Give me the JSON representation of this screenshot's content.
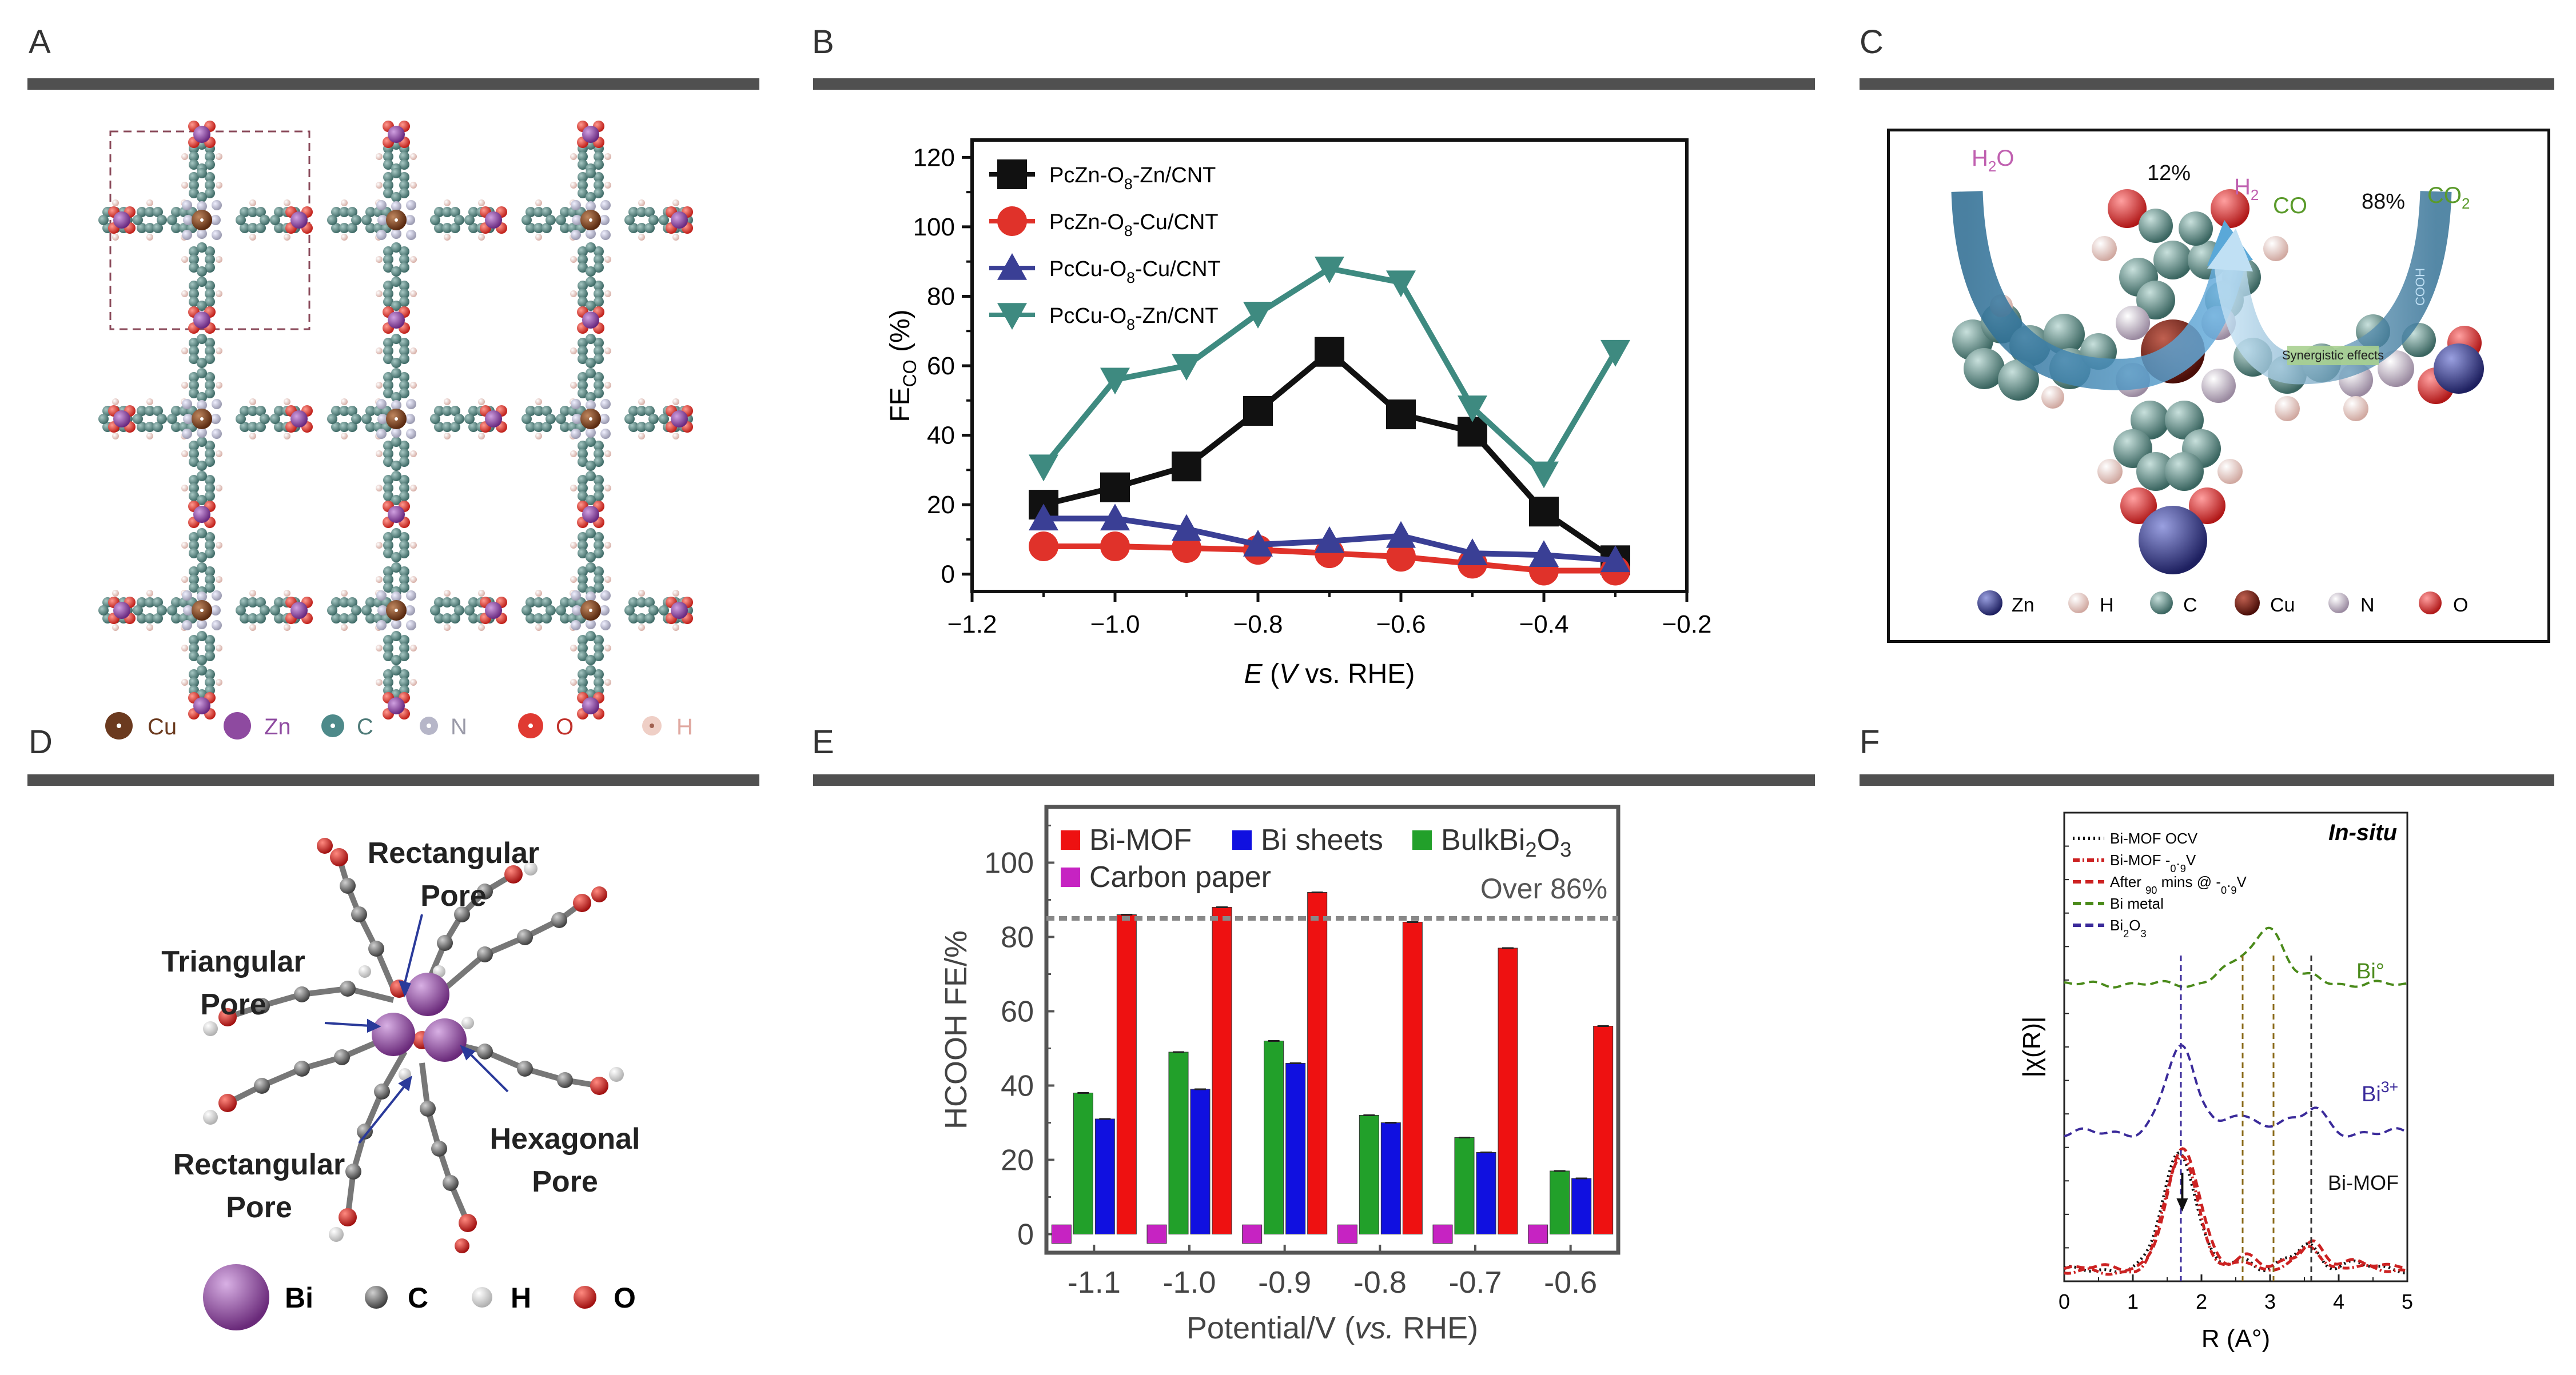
{
  "panels": {
    "a": {
      "letter": "A",
      "legend": [
        {
          "sym": "Cu",
          "color": "#6b3a1f"
        },
        {
          "sym": "Zn",
          "color": "#8e4aa0"
        },
        {
          "sym": "C",
          "color": "#4e7a78"
        },
        {
          "sym": "N",
          "color": "#b6b6c8"
        },
        {
          "sym": "O",
          "color": "#e03a32"
        },
        {
          "sym": "H",
          "color": "#efcfc6"
        }
      ]
    },
    "b": {
      "letter": "B"
    },
    "c": {
      "letter": "C",
      "labels": {
        "h2o": "H2O",
        "pct12": "12%",
        "h2": "H2",
        "co": "CO",
        "pct88": "88%",
        "co2": "CO2",
        "cooh": "COOH",
        "synergy": "Synergistic effects"
      },
      "legend": [
        {
          "sym": "Zn",
          "color": "#3a3f8a"
        },
        {
          "sym": "H",
          "color": "#efd8d2"
        },
        {
          "sym": "C",
          "color": "#5f8a84"
        },
        {
          "sym": "Cu",
          "color": "#7a2a1a"
        },
        {
          "sym": "N",
          "color": "#c9bfc4"
        },
        {
          "sym": "O",
          "color": "#e0463e"
        }
      ]
    },
    "d": {
      "letter": "D",
      "labels": {
        "rect_top": [
          "Rectangular",
          "Pore"
        ],
        "tri": [
          "Triangular",
          "Pore"
        ],
        "rect_bot": [
          "Rectangular",
          "Pore"
        ],
        "hex": [
          "Hexagonal",
          "Pore"
        ]
      },
      "legend": [
        {
          "sym": "Bi",
          "color": "#8a4e9a"
        },
        {
          "sym": "C",
          "color": "#6a6a6a"
        },
        {
          "sym": "H",
          "color": "#f2f2f2"
        },
        {
          "sym": "O",
          "color": "#d8322a"
        }
      ]
    },
    "e": {
      "letter": "E"
    },
    "f": {
      "letter": "F"
    }
  },
  "chart_data": [
    {
      "id": "B",
      "type": "line",
      "xlabel": "E (V vs. RHE)",
      "ylabel": "FE_CO (%)",
      "xlim": [
        -1.2,
        -0.2
      ],
      "ylim": [
        -5,
        125
      ],
      "xticks": [
        "−1.2",
        "−1.0",
        "−0.8",
        "−0.6",
        "−0.4",
        "−0.2"
      ],
      "yticks": [
        "0",
        "20",
        "40",
        "60",
        "80",
        "100",
        "120"
      ],
      "x": [
        -1.1,
        -1.0,
        -0.9,
        -0.8,
        -0.7,
        -0.6,
        -0.5,
        -0.4,
        -0.3
      ],
      "series": [
        {
          "name": "PcZn-O8-Zn/CNT",
          "color": "#111111",
          "marker": "square",
          "values": [
            20,
            25,
            31,
            47,
            64,
            46,
            41,
            18,
            4
          ]
        },
        {
          "name": "PcZn-O8-Cu/CNT",
          "color": "#e0322a",
          "marker": "circle",
          "values": [
            8,
            8,
            7.5,
            7,
            6,
            5,
            3,
            1,
            1
          ]
        },
        {
          "name": "PcCu-O8-Cu/CNT",
          "color": "#3a3f95",
          "marker": "triangle",
          "values": [
            16,
            16,
            13,
            8.5,
            9.5,
            11,
            6,
            5.5,
            4
          ]
        },
        {
          "name": "PcCu-O8-Zn/CNT",
          "color": "#3e8a80",
          "marker": "tri-down",
          "values": [
            31,
            56,
            60,
            75,
            88,
            84,
            48,
            29,
            64
          ]
        }
      ]
    },
    {
      "id": "E",
      "type": "bar",
      "xlabel": "Potential/V (vs. RHE)",
      "ylabel": "HCOOH FE/%",
      "ylim": [
        -5,
        115
      ],
      "yticks": [
        "0",
        "20",
        "40",
        "60",
        "80",
        "100"
      ],
      "categories": [
        "-1.1",
        "-1.0",
        "-0.9",
        "-0.8",
        "-0.7",
        "-0.6"
      ],
      "series": [
        {
          "name": "Carbon paper",
          "color": "#c623c2",
          "values": [
            0,
            0,
            0,
            0,
            0,
            0
          ]
        },
        {
          "name": "BulkBi2O3",
          "color": "#22a02a",
          "values": [
            38,
            49,
            52,
            32,
            26,
            17
          ]
        },
        {
          "name": "Bi sheets",
          "color": "#1010e0",
          "values": [
            31,
            39,
            46,
            30,
            22,
            15
          ]
        },
        {
          "name": "Bi-MOF",
          "color": "#ee1111",
          "values": [
            86,
            88,
            92,
            84,
            77,
            56
          ]
        }
      ],
      "reference_line": {
        "value": 85,
        "label": "Over 86%"
      }
    },
    {
      "id": "F",
      "type": "line",
      "title": "In-situ",
      "xlabel": "R (A°)",
      "ylabel": "|χ(R)|",
      "xlim": [
        0,
        5
      ],
      "xticks": [
        "0",
        "1",
        "2",
        "3",
        "4",
        "5"
      ],
      "series": [
        {
          "name": "Bi-MOF OCV",
          "color": "#111111",
          "style": "dotted"
        },
        {
          "name": "Bi-MOF -0.9V",
          "color": "#cc2222",
          "style": "dashdot"
        },
        {
          "name": "After 90 mins @ -0.9V",
          "color": "#cc2222",
          "style": "dashed"
        },
        {
          "name": "Bi metal",
          "color": "#4a8a1a",
          "style": "dashed"
        },
        {
          "name": "Bi2O3",
          "color": "#3a2a9a",
          "style": "dashed"
        }
      ],
      "curve_labels": {
        "bi0": "Bi°",
        "bi3": "Bi3+",
        "bimof": "Bi-MOF"
      }
    }
  ]
}
